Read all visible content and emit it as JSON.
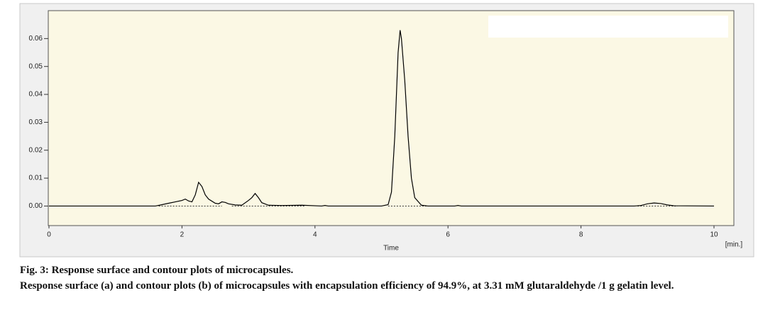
{
  "chart_data": {
    "type": "line",
    "xlabel": "Time",
    "xunit": "[min.]",
    "xlim": [
      0,
      10.3
    ],
    "ylim": [
      -0.007,
      0.07
    ],
    "xticks": [
      0,
      2,
      4,
      6,
      8,
      10
    ],
    "yticks": [
      {
        "value": 0,
        "label": "0.00"
      },
      0.01,
      0.02,
      0.03,
      0.04,
      0.05,
      0.06
    ],
    "color": "#000000",
    "x": [
      0,
      1.6,
      1.7,
      1.8,
      1.9,
      2.0,
      2.05,
      2.1,
      2.15,
      2.2,
      2.25,
      2.3,
      2.35,
      2.4,
      2.5,
      2.55,
      2.6,
      2.65,
      2.7,
      2.8,
      2.9,
      3.0,
      3.05,
      3.1,
      3.15,
      3.2,
      3.3,
      3.5,
      3.8,
      4.1,
      4.15,
      4.2,
      5.0,
      5.1,
      5.15,
      5.2,
      5.25,
      5.28,
      5.3,
      5.35,
      5.4,
      5.45,
      5.5,
      5.6,
      5.7,
      6.1,
      6.15,
      6.2,
      8.8,
      8.9,
      9.0,
      9.1,
      9.2,
      9.3,
      9.4,
      10
    ],
    "values": [
      0,
      0,
      0.0005,
      0.001,
      0.0015,
      0.002,
      0.0025,
      0.0018,
      0.0015,
      0.004,
      0.0085,
      0.007,
      0.004,
      0.0025,
      0.001,
      0.0008,
      0.0015,
      0.0013,
      0.0008,
      0.0004,
      0.0003,
      0.002,
      0.003,
      0.0045,
      0.003,
      0.0012,
      0.0003,
      0.0002,
      0.0003,
      0,
      0.0002,
      0,
      0,
      0.0005,
      0.005,
      0.025,
      0.055,
      0.063,
      0.06,
      0.045,
      0.025,
      0.01,
      0.003,
      0.0003,
      0,
      0,
      0.0002,
      0,
      0,
      0.0002,
      0.0008,
      0.0011,
      0.0009,
      0.0004,
      0.0001,
      0
    ],
    "baseline_segments": [
      [
        1.65,
        2.6
      ],
      [
        2.75,
        3.85
      ],
      [
        5.1,
        5.75
      ],
      [
        8.85,
        9.45
      ]
    ],
    "caption_title": "Fig. 3: Response surface and contour plots of microcapsules.",
    "caption": "Response surface (a) and contour plots (b) of microcapsules with encapsulation efficiency of 94.9%, at 3.31 mM glutaraldehyde /1 g gelatin level."
  }
}
